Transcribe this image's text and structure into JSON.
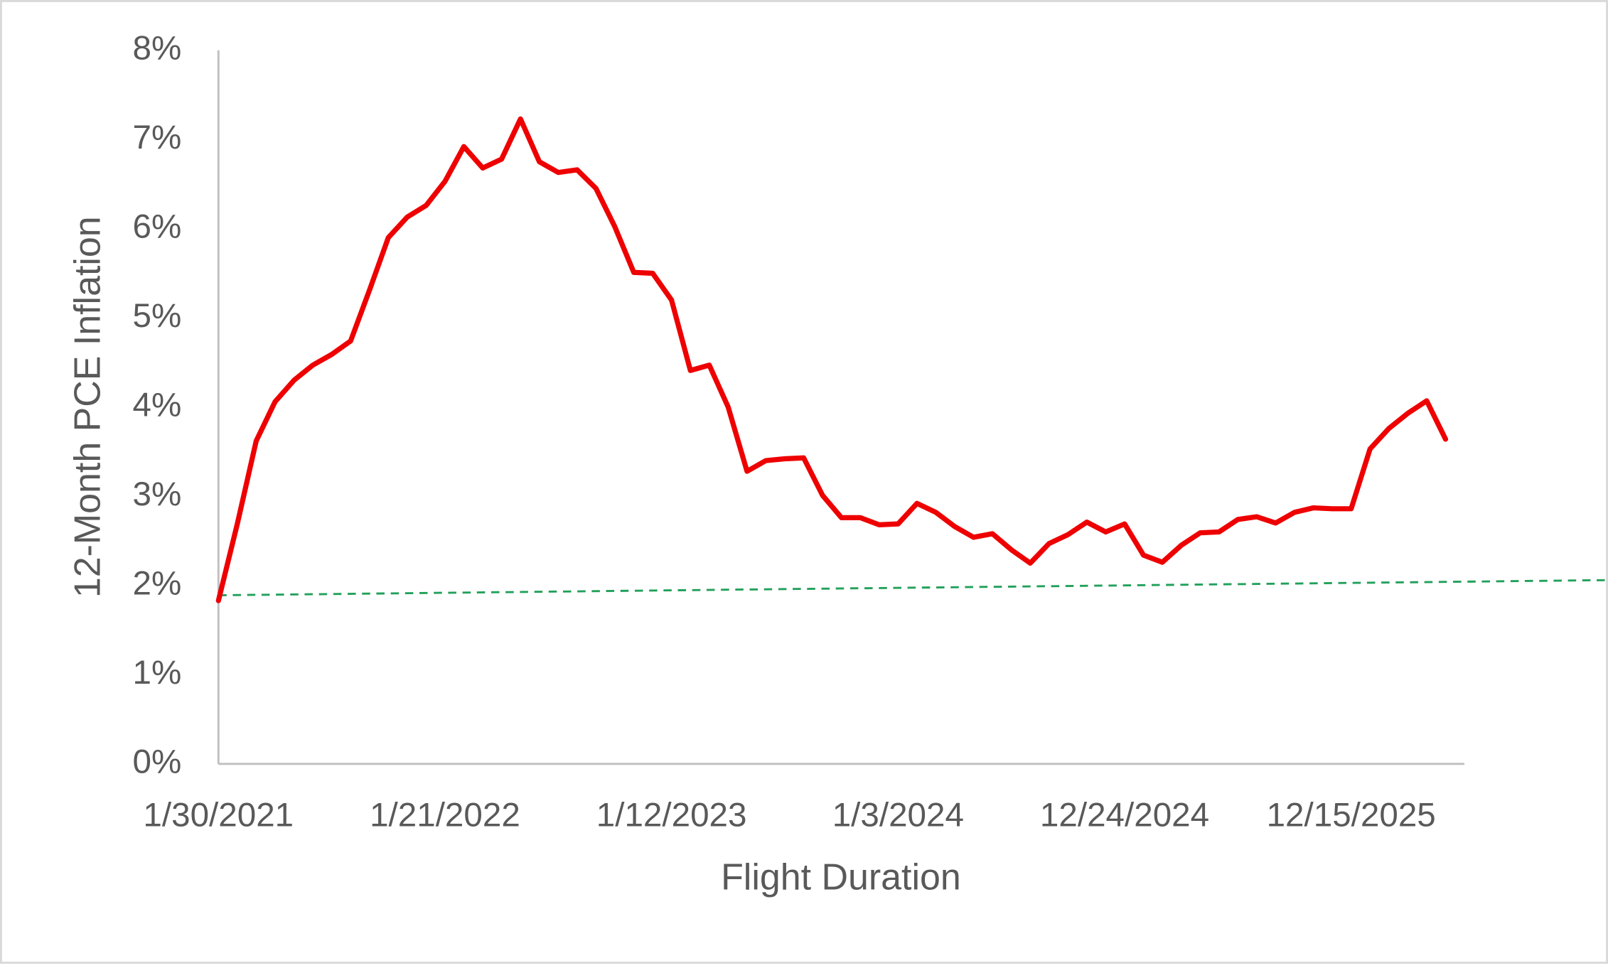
{
  "chart_data": {
    "type": "line",
    "x_label": "Flight Duration",
    "y_label": "12-Month PCE Inflation",
    "categories": [
      "1/30/2021",
      null,
      null,
      null,
      null,
      null,
      null,
      null,
      null,
      null,
      null,
      null,
      "1/21/2022",
      null,
      null,
      null,
      null,
      null,
      null,
      null,
      null,
      null,
      null,
      null,
      "1/12/2023",
      null,
      null,
      null,
      null,
      null,
      null,
      null,
      null,
      null,
      null,
      null,
      "1/3/2024",
      null,
      null,
      null,
      null,
      null,
      null,
      null,
      null,
      null,
      null,
      null,
      "12/24/2024",
      null,
      null,
      null,
      null,
      null,
      null,
      null,
      null,
      null,
      null,
      null,
      "12/15/2025",
      null,
      null,
      null,
      null,
      null
    ],
    "series": [
      {
        "color": "#ee0000",
        "values": [
          1.83,
          2.69,
          3.62,
          4.06,
          4.3,
          4.47,
          4.59,
          4.74,
          5.31,
          5.9,
          6.13,
          6.26,
          6.53,
          6.92,
          6.68,
          6.78,
          7.23,
          6.75,
          6.63,
          6.66,
          6.45,
          6.02,
          5.51,
          5.5,
          5.2,
          4.41,
          4.47,
          4.0,
          3.28,
          3.4,
          3.42,
          3.43,
          3.01,
          2.76,
          2.76,
          2.68,
          2.69,
          2.92,
          2.82,
          2.66,
          2.54,
          2.58,
          2.4,
          2.25,
          2.47,
          2.57,
          2.71,
          2.6,
          2.69,
          2.34,
          2.26,
          2.45,
          2.59,
          2.6,
          2.74,
          2.77,
          2.7,
          2.82,
          2.87,
          2.86,
          2.86,
          3.53,
          3.76,
          3.93,
          4.07,
          3.64
        ]
      }
    ],
    "trendline": {
      "start": 1.89,
      "end": 2.06,
      "color": "#22a05a",
      "dashed": true
    },
    "ylim": [
      0,
      8
    ],
    "yticks": [
      {
        "value": 0,
        "label": "0%"
      },
      {
        "value": 1,
        "label": "1%"
      },
      {
        "value": 2,
        "label": "2%"
      },
      {
        "value": 3,
        "label": "3%"
      },
      {
        "value": 4,
        "label": "4%"
      },
      {
        "value": 5,
        "label": "5%"
      },
      {
        "value": 6,
        "label": "6%"
      },
      {
        "value": 7,
        "label": "7%"
      },
      {
        "value": 8,
        "label": "8%"
      }
    ],
    "grid": false
  }
}
